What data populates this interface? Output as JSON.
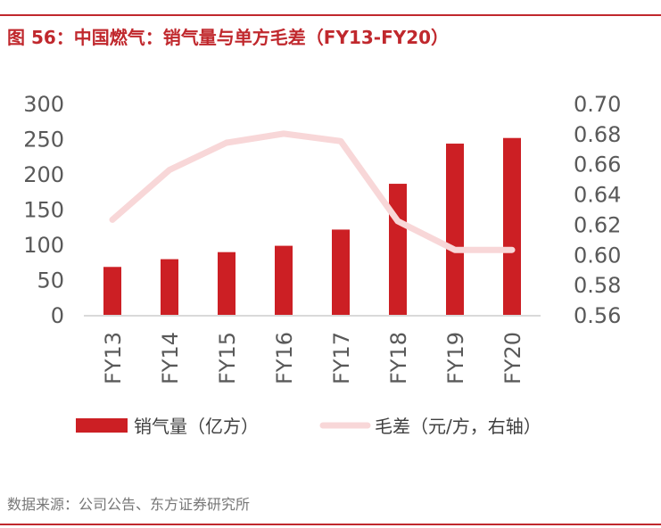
{
  "title": "图 56：中国燃气：销气量与单方毛差（FY13-FY20）",
  "source": "数据来源：公司公告、东方证券研究所",
  "colors": {
    "bar": "#cc1f24",
    "line": "#f8d7d8",
    "title": "#c0282d"
  },
  "chart_data": {
    "type": "bar+line",
    "categories": [
      "FY13",
      "FY14",
      "FY15",
      "FY16",
      "FY17",
      "FY18",
      "FY19",
      "FY20"
    ],
    "series": [
      {
        "name": "销气量（亿方）",
        "type": "bar",
        "axis": "left",
        "values": [
          68,
          79,
          89,
          98,
          121,
          186,
          243,
          251
        ]
      },
      {
        "name": "毛差（元/方，右轴）",
        "type": "line",
        "axis": "right",
        "values": [
          0.623,
          0.656,
          0.674,
          0.68,
          0.675,
          0.622,
          0.603,
          0.603
        ]
      }
    ],
    "left_axis": {
      "range": [
        0,
        300
      ],
      "ticks": [
        "0",
        "50",
        "100",
        "150",
        "200",
        "250",
        "300"
      ]
    },
    "right_axis": {
      "range": [
        0.56,
        0.7
      ],
      "ticks": [
        "0.56",
        "0.58",
        "0.60",
        "0.62",
        "0.64",
        "0.66",
        "0.68",
        "0.70"
      ]
    },
    "grid": false,
    "legend": "bottom"
  }
}
